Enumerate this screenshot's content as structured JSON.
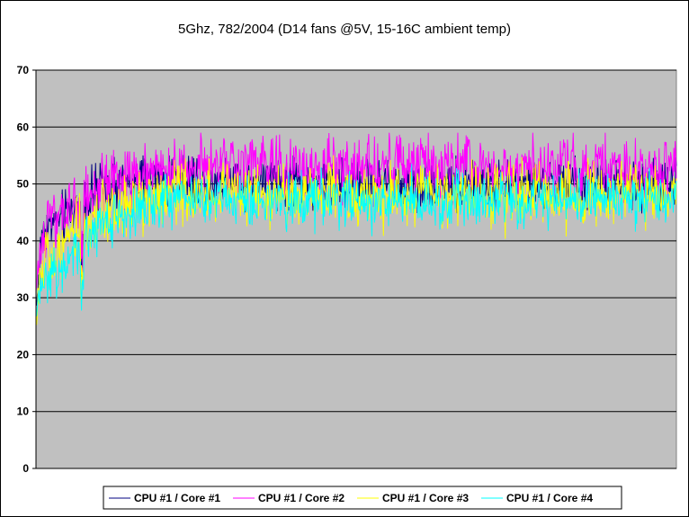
{
  "chart_data": {
    "type": "line",
    "title": "5Ghz, 782/2004 (D14 fans @5V, 15-16C ambient temp)",
    "xlabel": "",
    "ylabel": "",
    "ylim": [
      0,
      70
    ],
    "yticks": [
      "0",
      "10",
      "20",
      "30",
      "40",
      "50",
      "60",
      "70"
    ],
    "grid": true,
    "plot_background": "#c0c0c0",
    "legend_position": "bottom",
    "n_samples": 1000,
    "series": [
      {
        "name": "CPU #1 / Core #1",
        "color": "#000080",
        "profile": [
          [
            0,
            28
          ],
          [
            10,
            42
          ],
          [
            40,
            44
          ],
          [
            72,
            47
          ],
          [
            100,
            49
          ],
          [
            200,
            51
          ],
          [
            500,
            50
          ],
          [
            1000,
            50
          ]
        ],
        "noise": 2.2,
        "range": [
          24,
          55
        ]
      },
      {
        "name": "CPU #1 / Core #2",
        "color": "#ff00ff",
        "profile": [
          [
            0,
            30
          ],
          [
            10,
            42
          ],
          [
            40,
            44
          ],
          [
            72,
            47
          ],
          [
            100,
            49
          ],
          [
            200,
            53
          ],
          [
            500,
            53
          ],
          [
            1000,
            53
          ]
        ],
        "noise": 2.6,
        "range": [
          25,
          59
        ]
      },
      {
        "name": "CPU #1 / Core #3",
        "color": "#ffff00",
        "profile": [
          [
            0,
            27
          ],
          [
            10,
            36
          ],
          [
            40,
            38
          ],
          [
            72,
            42
          ],
          [
            100,
            45
          ],
          [
            200,
            48
          ],
          [
            500,
            48
          ],
          [
            1000,
            48
          ]
        ],
        "noise": 2.6,
        "range": [
          24,
          56
        ]
      },
      {
        "name": "CPU #1 / Core #4",
        "color": "#00ffff",
        "profile": [
          [
            0,
            27
          ],
          [
            10,
            33
          ],
          [
            40,
            35
          ],
          [
            72,
            40
          ],
          [
            100,
            43
          ],
          [
            200,
            47
          ],
          [
            500,
            47
          ],
          [
            1000,
            47
          ]
        ],
        "noise": 2.2,
        "range": [
          24,
          55
        ]
      }
    ]
  }
}
